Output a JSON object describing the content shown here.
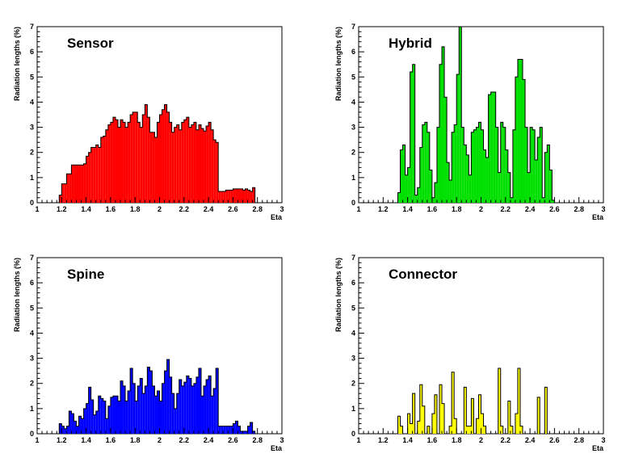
{
  "chart_data": [
    {
      "type": "bar",
      "title": "Sensor",
      "xlabel": "Eta",
      "ylabel": "Radiation lengths (%)",
      "xlim": [
        1,
        3
      ],
      "ylim": [
        0,
        7
      ],
      "x_ticks": [
        "1",
        "1.2",
        "1.4",
        "1.6",
        "1.8",
        "2",
        "2.2",
        "2.4",
        "2.6",
        "2.8",
        "3"
      ],
      "y_ticks": [
        "0",
        "1",
        "2",
        "3",
        "4",
        "5",
        "6",
        "7"
      ],
      "fill_color": "#ff0000",
      "bin_start": 1.18,
      "bin_width": 0.02,
      "values": [
        0.3,
        0.75,
        0.75,
        1.15,
        1.15,
        1.5,
        1.5,
        1.5,
        1.5,
        1.5,
        1.55,
        1.85,
        2.0,
        2.2,
        2.2,
        2.3,
        2.2,
        2.6,
        2.65,
        2.9,
        3.1,
        3.2,
        3.4,
        3.3,
        3.0,
        3.3,
        3.2,
        3.0,
        3.2,
        3.5,
        3.6,
        3.6,
        3.2,
        3.0,
        3.5,
        3.9,
        3.4,
        2.8,
        2.8,
        2.6,
        3.2,
        3.5,
        3.7,
        3.9,
        3.6,
        3.2,
        2.8,
        3.0,
        3.1,
        2.9,
        3.2,
        3.3,
        3.4,
        3.0,
        3.1,
        3.2,
        2.9,
        3.1,
        2.95,
        2.85,
        3.05,
        3.2,
        2.9,
        2.5,
        2.4,
        0.45,
        0.45,
        0.45,
        0.5,
        0.5,
        0.5,
        0.55,
        0.55,
        0.55,
        0.55,
        0.5,
        0.55,
        0.5,
        0.45,
        0.6
      ]
    },
    {
      "type": "bar",
      "title": "Hybrid",
      "xlabel": "Eta",
      "ylabel": "Radiation lengths (%)",
      "xlim": [
        1,
        3
      ],
      "ylim": [
        0,
        7
      ],
      "x_ticks": [
        "1",
        "1.2",
        "1.4",
        "1.6",
        "1.8",
        "2",
        "2.2",
        "2.4",
        "2.6",
        "2.8",
        "3"
      ],
      "y_ticks": [
        "0",
        "1",
        "2",
        "3",
        "4",
        "5",
        "6",
        "7"
      ],
      "fill_color": "#00e000",
      "bin_start": 1.32,
      "bin_width": 0.02,
      "values": [
        0.4,
        2.1,
        2.3,
        1.1,
        1.4,
        5.2,
        5.5,
        0.3,
        0.6,
        2.2,
        3.1,
        3.2,
        2.8,
        1.3,
        0.2,
        0.8,
        3.0,
        5.5,
        6.2,
        4.2,
        1.6,
        0.9,
        2.8,
        3.1,
        5.1,
        7.0,
        3.0,
        2.3,
        1.9,
        1.1,
        2.8,
        2.9,
        3.0,
        3.2,
        2.9,
        2.1,
        1.8,
        4.3,
        4.4,
        4.4,
        3.0,
        1.2,
        3.2,
        3.0,
        2.1,
        1.2,
        0.2,
        2.9,
        5.0,
        5.7,
        5.7,
        4.9,
        3.0,
        1.2,
        3.0,
        2.9,
        1.7,
        2.6,
        3.0,
        0.2,
        2.0,
        2.3,
        1.3,
        0.1
      ]
    },
    {
      "type": "bar",
      "title": "Spine",
      "xlabel": "Eta",
      "ylabel": "Radiation lengths (%)",
      "xlim": [
        1,
        3
      ],
      "ylim": [
        0,
        7
      ],
      "x_ticks": [
        "1",
        "1.2",
        "1.4",
        "1.6",
        "1.8",
        "2",
        "2.2",
        "2.4",
        "2.6",
        "2.8",
        "3"
      ],
      "y_ticks": [
        "0",
        "1",
        "2",
        "3",
        "4",
        "5",
        "6",
        "7"
      ],
      "fill_color": "#0000ff",
      "bin_start": 1.18,
      "bin_width": 0.02,
      "values": [
        0.4,
        0.3,
        0.2,
        0.3,
        0.9,
        0.8,
        0.5,
        0.3,
        0.7,
        0.6,
        1.0,
        1.2,
        1.85,
        1.35,
        0.75,
        0.9,
        1.5,
        1.4,
        1.3,
        0.6,
        1.1,
        1.45,
        1.5,
        1.5,
        1.3,
        2.1,
        1.9,
        1.3,
        1.7,
        2.6,
        2.0,
        1.3,
        1.9,
        2.2,
        1.6,
        1.9,
        2.65,
        2.5,
        1.9,
        1.5,
        1.7,
        1.3,
        2.0,
        2.5,
        2.95,
        2.25,
        1.6,
        1.0,
        1.6,
        2.15,
        1.9,
        2.05,
        2.3,
        2.2,
        1.9,
        2.0,
        2.25,
        2.6,
        1.5,
        1.9,
        2.15,
        2.3,
        1.5,
        1.8,
        2.6,
        0.3,
        0.3,
        0.3,
        0.3,
        0.3,
        0.3,
        0.4,
        0.5,
        0.3,
        0.1,
        0.1,
        0.1,
        0.3,
        0.45,
        0.1
      ]
    },
    {
      "type": "bar",
      "title": "Connector",
      "xlabel": "Eta",
      "ylabel": "Radiation lengths (%)",
      "xlim": [
        1,
        3
      ],
      "ylim": [
        0,
        7
      ],
      "x_ticks": [
        "1",
        "1.2",
        "1.4",
        "1.6",
        "1.8",
        "2",
        "2.2",
        "2.4",
        "2.6",
        "2.8",
        "3"
      ],
      "y_ticks": [
        "0",
        "1",
        "2",
        "3",
        "4",
        "5",
        "6",
        "7"
      ],
      "fill_color": "#ffff00",
      "bin_start": 1.32,
      "bin_width": 0.02,
      "values": [
        0.7,
        0.3,
        0.0,
        0.0,
        0.8,
        0.4,
        1.6,
        0.0,
        0.5,
        1.95,
        1.1,
        0.0,
        0.3,
        0.0,
        0.8,
        1.55,
        0.0,
        1.95,
        1.2,
        0.0,
        0.0,
        0.3,
        2.45,
        0.6,
        0.0,
        0.0,
        0.0,
        1.85,
        0.3,
        0.3,
        1.4,
        0.0,
        0.6,
        1.55,
        0.8,
        0.3,
        0.0,
        0.0,
        0.0,
        0.0,
        0.0,
        2.6,
        0.3,
        0.0,
        0.0,
        1.3,
        0.3,
        0.0,
        0.8,
        2.6,
        0.3,
        0.0,
        0.0,
        0.0,
        0.0,
        0.0,
        0.0,
        1.45,
        0.0,
        0.0,
        1.85,
        0.0
      ]
    }
  ]
}
